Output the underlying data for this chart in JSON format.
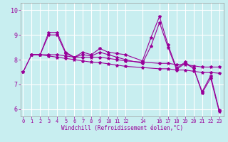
{
  "xlabel": "Windchill (Refroidissement éolien,°C)",
  "background_color": "#c8eef0",
  "grid_color": "#ffffff",
  "line_color": "#990099",
  "xticks": [
    0,
    1,
    2,
    3,
    4,
    5,
    6,
    7,
    8,
    9,
    10,
    11,
    12,
    14,
    16,
    17,
    18,
    19,
    20,
    21,
    22,
    23
  ],
  "yticks": [
    6,
    7,
    8,
    9,
    10
  ],
  "xlim": [
    -0.3,
    23.5
  ],
  "ylim": [
    5.7,
    10.3
  ],
  "series1": [
    [
      0,
      7.5
    ],
    [
      1,
      8.2
    ],
    [
      2,
      8.2
    ],
    [
      3,
      9.1
    ],
    [
      4,
      9.1
    ],
    [
      5,
      8.3
    ],
    [
      6,
      8.1
    ],
    [
      7,
      8.3
    ],
    [
      8,
      8.2
    ],
    [
      9,
      8.45
    ],
    [
      10,
      8.3
    ],
    [
      11,
      8.25
    ],
    [
      12,
      8.2
    ],
    [
      14,
      7.95
    ],
    [
      15,
      8.9
    ],
    [
      16,
      9.75
    ],
    [
      17,
      8.6
    ],
    [
      18,
      7.65
    ],
    [
      19,
      7.9
    ],
    [
      20,
      7.65
    ],
    [
      21,
      6.7
    ],
    [
      22,
      7.35
    ],
    [
      23,
      5.95
    ]
  ],
  "series2": [
    [
      0,
      7.5
    ],
    [
      1,
      8.2
    ],
    [
      2,
      8.2
    ],
    [
      3,
      9.0
    ],
    [
      4,
      9.0
    ],
    [
      5,
      8.25
    ],
    [
      6,
      8.1
    ],
    [
      7,
      8.2
    ],
    [
      8,
      8.15
    ],
    [
      9,
      8.3
    ],
    [
      10,
      8.2
    ],
    [
      11,
      8.1
    ],
    [
      12,
      8.0
    ],
    [
      14,
      7.85
    ],
    [
      15,
      8.55
    ],
    [
      16,
      9.5
    ],
    [
      17,
      8.5
    ],
    [
      18,
      7.6
    ],
    [
      19,
      7.85
    ],
    [
      20,
      7.65
    ],
    [
      21,
      6.65
    ],
    [
      22,
      7.25
    ],
    [
      23,
      5.9
    ]
  ],
  "series3": [
    [
      1,
      8.2
    ],
    [
      2,
      8.2
    ],
    [
      3,
      8.2
    ],
    [
      4,
      8.2
    ],
    [
      5,
      8.15
    ],
    [
      6,
      8.1
    ],
    [
      7,
      8.1
    ],
    [
      8,
      8.1
    ],
    [
      9,
      8.1
    ],
    [
      10,
      8.05
    ],
    [
      11,
      8.0
    ],
    [
      12,
      7.95
    ],
    [
      14,
      7.9
    ],
    [
      16,
      7.85
    ],
    [
      17,
      7.85
    ],
    [
      18,
      7.8
    ],
    [
      19,
      7.8
    ],
    [
      20,
      7.75
    ],
    [
      21,
      7.7
    ],
    [
      22,
      7.7
    ],
    [
      23,
      7.7
    ]
  ],
  "series4": [
    [
      1,
      8.2
    ],
    [
      2,
      8.2
    ],
    [
      3,
      8.15
    ],
    [
      4,
      8.1
    ],
    [
      5,
      8.05
    ],
    [
      6,
      8.0
    ],
    [
      7,
      7.95
    ],
    [
      8,
      7.9
    ],
    [
      9,
      7.88
    ],
    [
      10,
      7.83
    ],
    [
      11,
      7.78
    ],
    [
      12,
      7.73
    ],
    [
      14,
      7.68
    ],
    [
      16,
      7.63
    ],
    [
      17,
      7.63
    ],
    [
      18,
      7.58
    ],
    [
      19,
      7.58
    ],
    [
      20,
      7.53
    ],
    [
      21,
      7.48
    ],
    [
      22,
      7.48
    ],
    [
      23,
      7.45
    ]
  ]
}
